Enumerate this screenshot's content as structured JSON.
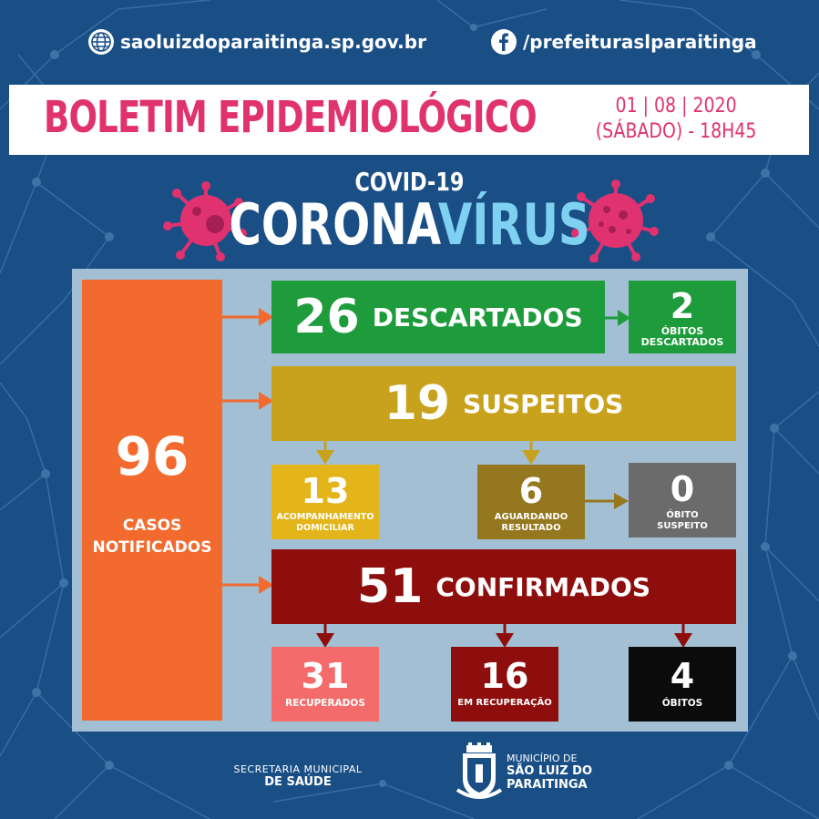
{
  "header_links": {
    "website": "saoluizdoparaitinga.sp.gov.br",
    "facebook": "/prefeituraslparaitinga"
  },
  "banner": {
    "title": "BOLETIM EPIDEMIOLÓGICO",
    "date": "01 | 08 | 2020",
    "day_time": "(SÁBADO) - 18H45"
  },
  "heading": {
    "covid": "COVID-19",
    "corona_part1": "CORONA",
    "corona_part2": "VÍRUS"
  },
  "stats": {
    "notificados": {
      "value": "96",
      "label_line1": "CASOS",
      "label_line2": "NOTIFICADOS"
    },
    "descartados": {
      "value": "26",
      "label": "DESCARTADOS"
    },
    "obitos_descartados": {
      "value": "2",
      "label_line1": "ÓBITOS",
      "label_line2": "DESCARTADOS"
    },
    "suspeitos": {
      "value": "19",
      "label": "SUSPEITOS"
    },
    "acompanhamento": {
      "value": "13",
      "label_line1": "ACOMPANHAMENTO",
      "label_line2": "DOMICILIAR"
    },
    "aguardando": {
      "value": "6",
      "label_line1": "AGUARDANDO",
      "label_line2": "RESULTADO"
    },
    "obito_suspeito": {
      "value": "0",
      "label_line1": "ÓBITO",
      "label_line2": "SUSPEITO"
    },
    "confirmados": {
      "value": "51",
      "label": "CONFIRMADOS"
    },
    "recuperados": {
      "value": "31",
      "label": "RECUPERADOS"
    },
    "em_recuperacao": {
      "value": "16",
      "label": "EM RECUPERAÇÃO"
    },
    "obitos": {
      "value": "4",
      "label": "ÓBITOS"
    }
  },
  "footer": {
    "secretaria_line1": "SECRETARIA MUNICIPAL",
    "secretaria_line2": "DE SAÚDE",
    "municipio_line1": "MUNICÍPIO DE",
    "municipio_line2": "SÃO LUIZ DO",
    "municipio_line3": "PARAITINGA"
  },
  "colors": {
    "background": "#1a4f86",
    "title_pink": "#e0326e",
    "orange": "#f26a2e",
    "green": "#1e9c3c",
    "mustard": "#c9a21d",
    "yellow": "#e3b51a",
    "olive": "#94771f",
    "gray": "#6b6b6b",
    "dark_red": "#8e0d0d",
    "salmon": "#f36b6b",
    "black": "#0b0b0b"
  }
}
